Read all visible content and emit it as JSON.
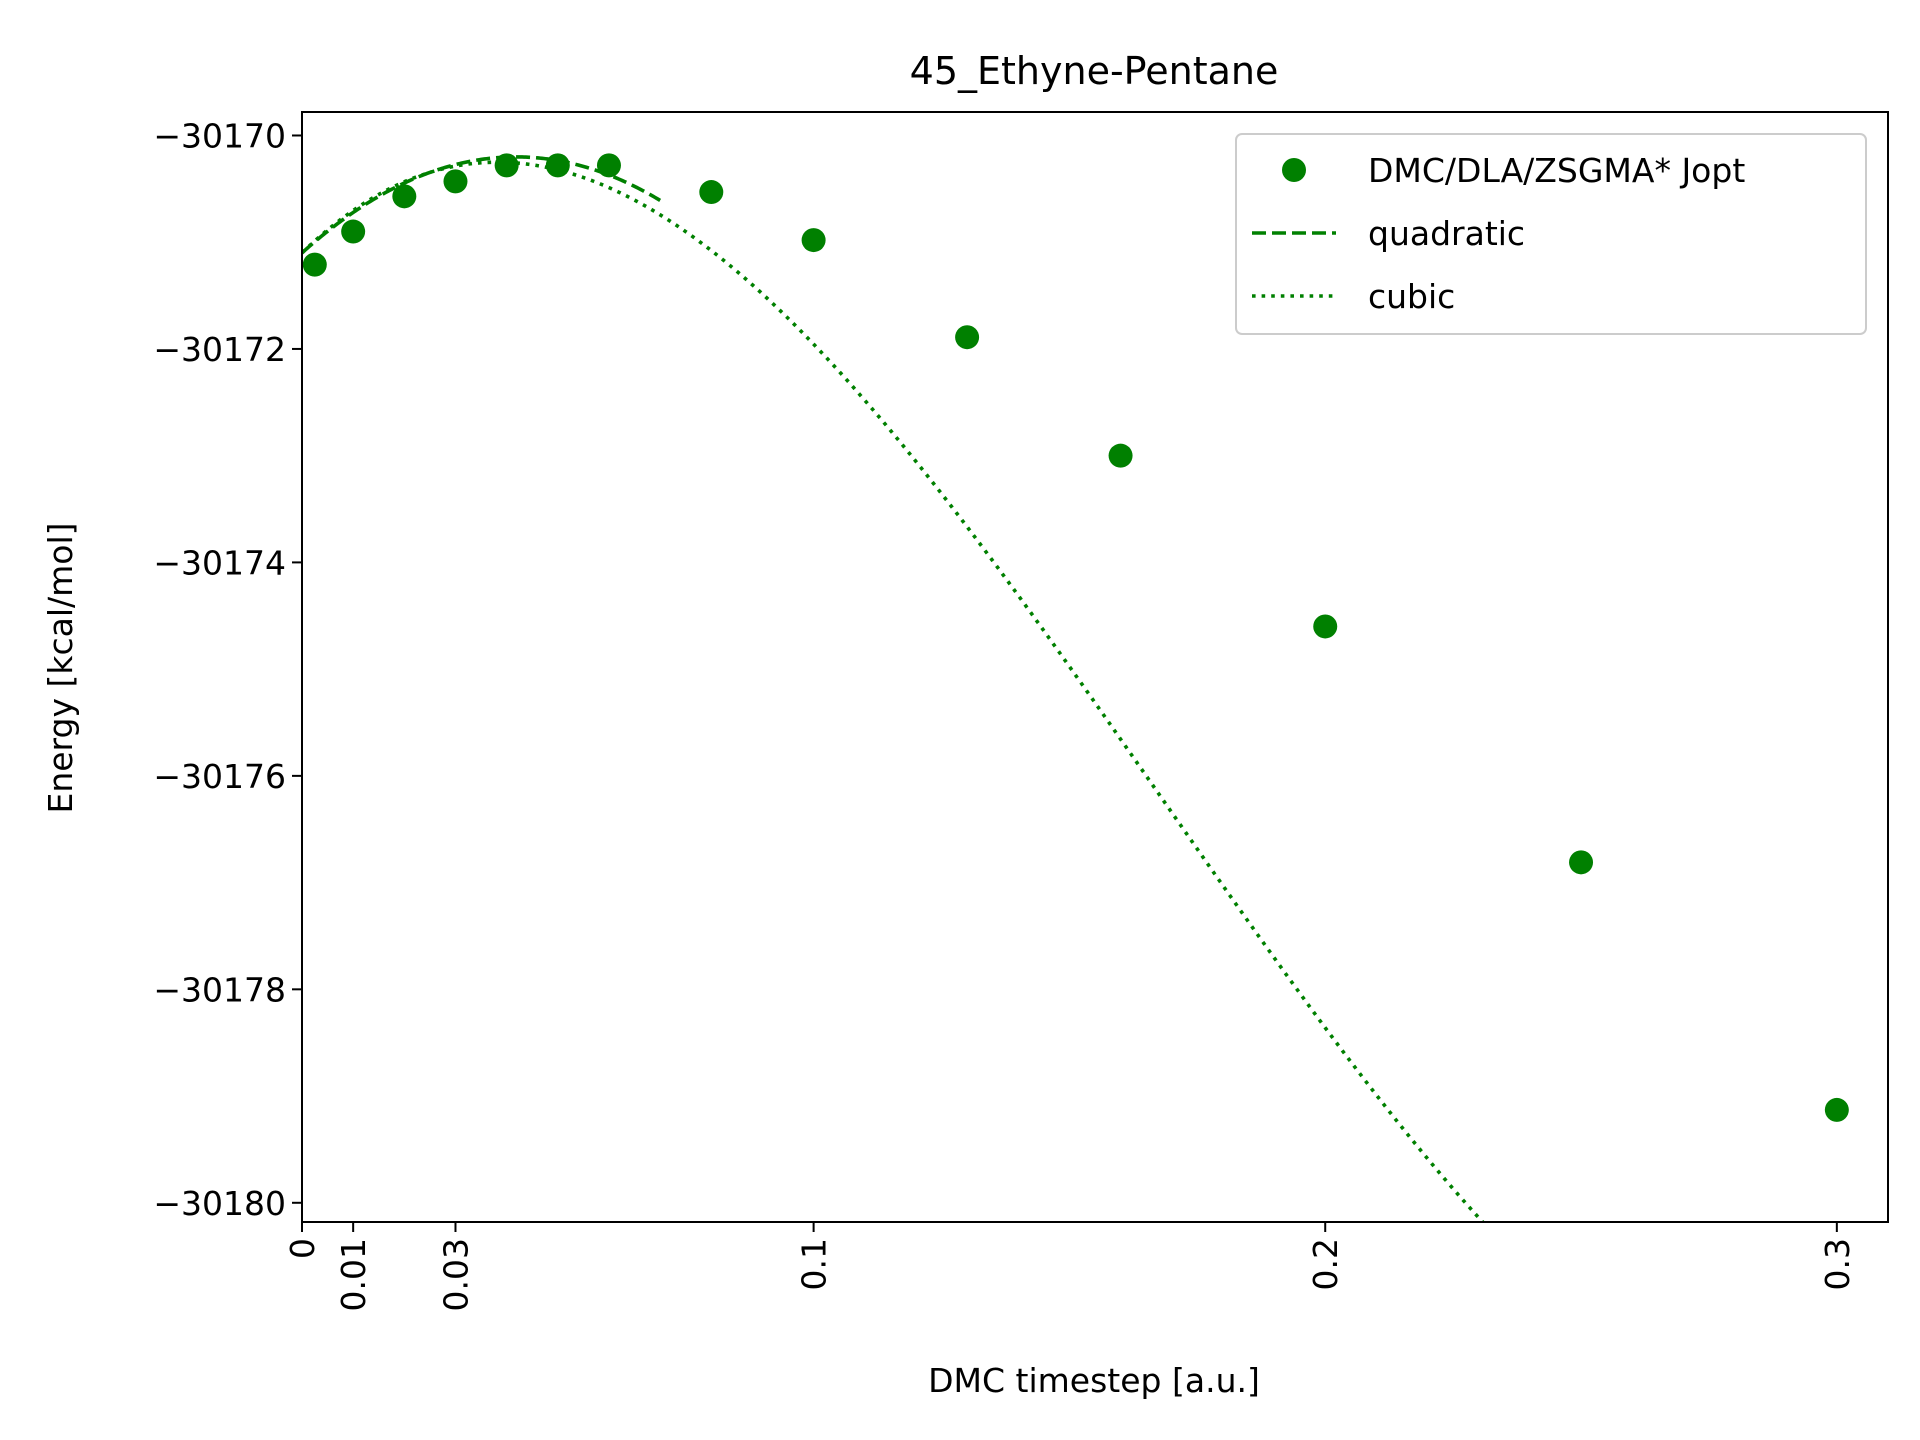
{
  "chart_data": {
    "type": "scatter",
    "title": "45_Ethyne-Pentane",
    "xlabel": "DMC timestep [a.u.]",
    "ylabel": "Energy [kcal/mol]",
    "xlim": [
      0,
      0.31
    ],
    "ylim": [
      -30180.18,
      -30169.78
    ],
    "xticks": [
      0,
      0.01,
      0.03,
      0.1,
      0.2,
      0.3
    ],
    "xtick_labels": [
      "0",
      "0.01",
      "0.03",
      "0.1",
      "0.2",
      "0.3"
    ],
    "yticks": [
      -30170,
      -30172,
      -30174,
      -30176,
      -30178,
      -30180
    ],
    "ytick_labels": [
      "−30170",
      "−30172",
      "−30174",
      "−30176",
      "−30178",
      "−30180"
    ],
    "grid": false,
    "legend": "top-right",
    "color": "#008000",
    "series": [
      {
        "name": "DMC/DLA/ZSGMA* Jopt",
        "style": "points",
        "x": [
          0.0025,
          0.01,
          0.02,
          0.03,
          0.04,
          0.05,
          0.06,
          0.08,
          0.1,
          0.13,
          0.16,
          0.2,
          0.25,
          0.3
        ],
        "y": [
          -30171.21,
          -30170.9,
          -30170.57,
          -30170.43,
          -30170.28,
          -30170.28,
          -30170.28,
          -30170.53,
          -30170.98,
          -30171.89,
          -30173.0,
          -30174.6,
          -30176.81,
          -30179.13
        ]
      },
      {
        "name": "quadratic",
        "style": "dashed",
        "coefficients": [
          -30171.1,
          43.0,
          -514.0
        ],
        "x_range": [
          0,
          0.07
        ]
      },
      {
        "name": "cubic",
        "style": "dotted",
        "coefficients": [
          -30171.1,
          46.5,
          -687.0,
          1365.0
        ],
        "x_range": [
          0,
          0.31
        ]
      }
    ]
  }
}
